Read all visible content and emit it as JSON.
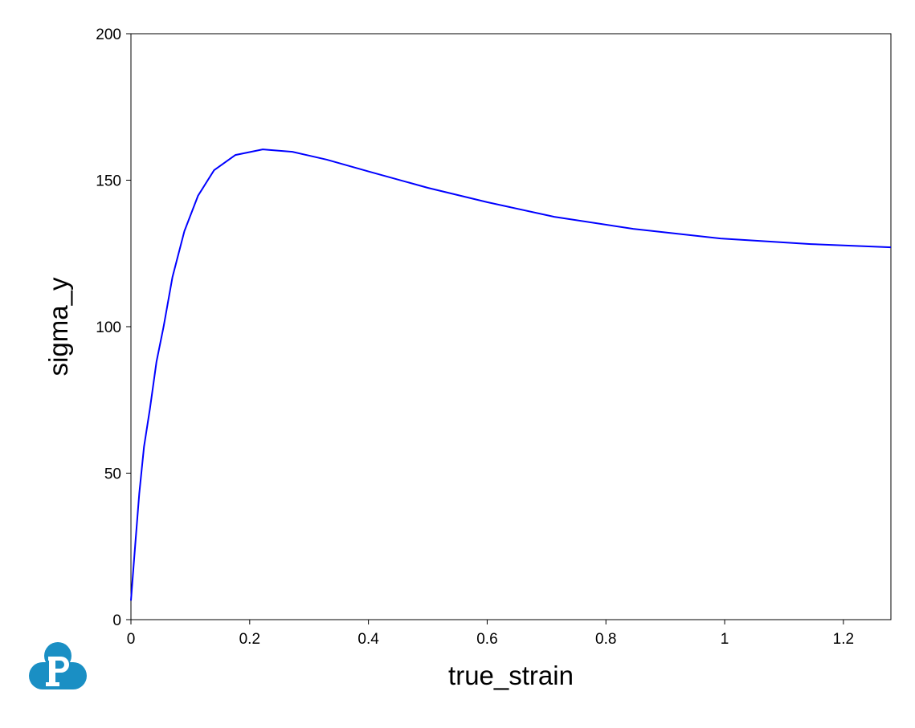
{
  "chart_data": {
    "type": "line",
    "x_label": "true_strain",
    "y_label": "sigma_y",
    "series": [
      {
        "color": "#0000ff",
        "x": [
          0,
          0.007,
          0.014,
          0.022,
          0.032,
          0.043,
          0.055,
          0.07,
          0.09,
          0.113,
          0.14,
          0.176,
          0.222,
          0.272,
          0.33,
          0.4,
          0.5,
          0.6,
          0.713,
          0.846,
          0.993,
          1.145,
          1.28
        ],
        "values": [
          6.5,
          25,
          43,
          59,
          72,
          88,
          100,
          117,
          132.6,
          144.7,
          153.4,
          158.6,
          160.5,
          159.7,
          157,
          153,
          147.4,
          142.5,
          137.5,
          133.4,
          130.1,
          128.2,
          127.1
        ]
      }
    ],
    "xlim": [
      0,
      1.28
    ],
    "ylim": [
      0,
      200
    ],
    "xticks": [
      0,
      0.2,
      0.4,
      0.6,
      0.8,
      1,
      1.2
    ],
    "yticks": [
      0,
      50,
      100,
      150,
      200
    ]
  }
}
